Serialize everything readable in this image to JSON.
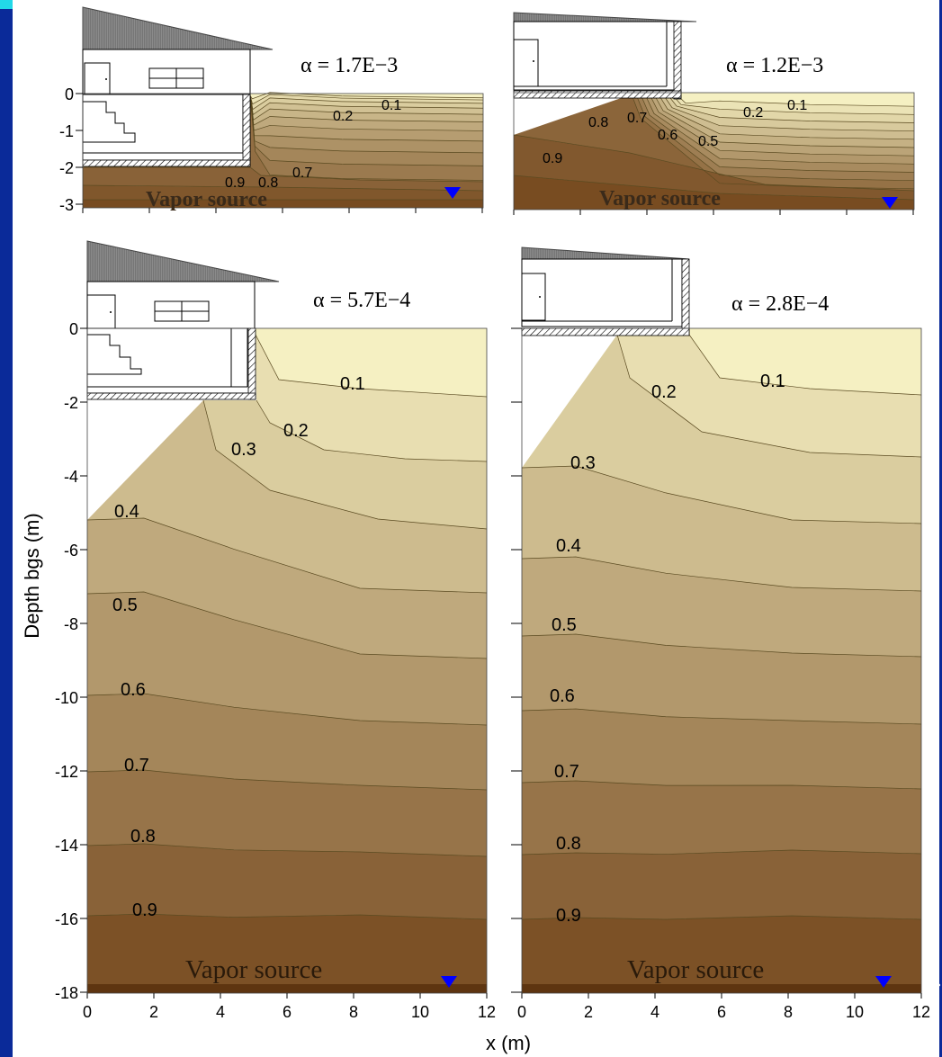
{
  "y_axis_label": "Depth bgs (m)",
  "x_axis_label": "x (m)",
  "source_label": "Vapor source",
  "panels": [
    {
      "alpha_label": "α = 1.7E−3",
      "y_ticks": [
        "0",
        "-1",
        "-2",
        "-3"
      ],
      "contour_labels": [
        "0.1",
        "0.2",
        "0.7",
        "0.8",
        "0.9"
      ]
    },
    {
      "alpha_label": "α = 1.2E−3",
      "contour_labels": [
        "0.1",
        "0.2",
        "0.5",
        "0.6",
        "0.7",
        "0.8",
        "0.9"
      ]
    },
    {
      "alpha_label": "α = 5.7E−4",
      "y_ticks": [
        "0",
        "-2",
        "-4",
        "-6",
        "-8",
        "-10",
        "-12",
        "-14",
        "-16",
        "-18"
      ],
      "x_ticks": [
        "0",
        "2",
        "4",
        "6",
        "8",
        "10",
        "12"
      ],
      "contour_labels": [
        "0.1",
        "0.2",
        "0.3",
        "0.4",
        "0.5",
        "0.6",
        "0.7",
        "0.8",
        "0.9"
      ]
    },
    {
      "alpha_label": "α = 2.8E−4",
      "x_ticks": [
        "0",
        "2",
        "4",
        "6",
        "8",
        "10",
        "12"
      ],
      "contour_labels": [
        "0.1",
        "0.2",
        "0.3",
        "0.4",
        "0.5",
        "0.6",
        "0.7",
        "0.8",
        "0.9"
      ]
    }
  ],
  "colors": {
    "background": "#0a2a99",
    "accent_strip": "#22d8e8",
    "figure_bg": "#ffffff",
    "soil_light": "#f5f0c2",
    "soil_dark": "#6e3f15",
    "water_table": "#0000ff"
  }
}
